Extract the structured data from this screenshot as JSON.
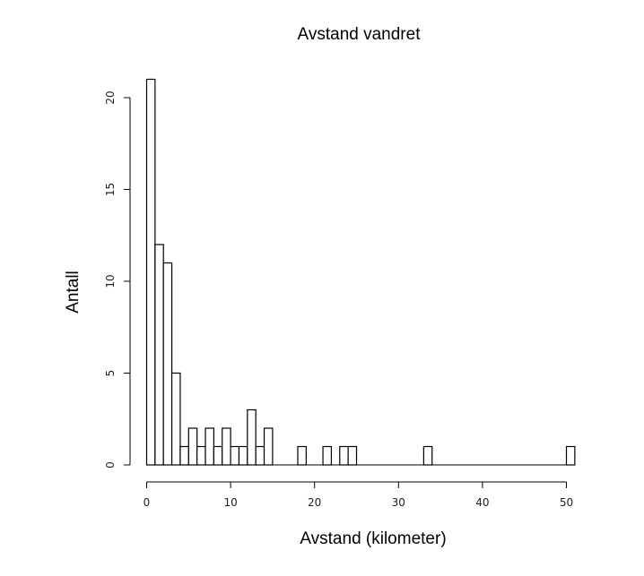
{
  "chart_data": {
    "type": "bar",
    "title": "Avstand vandret",
    "xlabel": "Avstand (kilometer)",
    "ylabel": "Antall",
    "bin_width": 1,
    "xlim": [
      0,
      51
    ],
    "ylim": [
      0,
      21
    ],
    "x_ticks": [
      0,
      10,
      20,
      30,
      40,
      50
    ],
    "y_ticks": [
      0,
      5,
      10,
      15,
      20
    ],
    "bins": [
      {
        "x0": 0,
        "x1": 1,
        "count": 21
      },
      {
        "x0": 1,
        "x1": 2,
        "count": 12
      },
      {
        "x0": 2,
        "x1": 3,
        "count": 11
      },
      {
        "x0": 3,
        "x1": 4,
        "count": 5
      },
      {
        "x0": 4,
        "x1": 5,
        "count": 1
      },
      {
        "x0": 5,
        "x1": 6,
        "count": 2
      },
      {
        "x0": 6,
        "x1": 7,
        "count": 1
      },
      {
        "x0": 7,
        "x1": 8,
        "count": 2
      },
      {
        "x0": 8,
        "x1": 9,
        "count": 1
      },
      {
        "x0": 9,
        "x1": 10,
        "count": 2
      },
      {
        "x0": 10,
        "x1": 11,
        "count": 1
      },
      {
        "x0": 11,
        "x1": 12,
        "count": 1
      },
      {
        "x0": 12,
        "x1": 13,
        "count": 3
      },
      {
        "x0": 13,
        "x1": 14,
        "count": 1
      },
      {
        "x0": 14,
        "x1": 15,
        "count": 2
      },
      {
        "x0": 18,
        "x1": 19,
        "count": 1
      },
      {
        "x0": 21,
        "x1": 22,
        "count": 1
      },
      {
        "x0": 23,
        "x1": 24,
        "count": 1
      },
      {
        "x0": 24,
        "x1": 25,
        "count": 1
      },
      {
        "x0": 33,
        "x1": 34,
        "count": 1
      },
      {
        "x0": 50,
        "x1": 51,
        "count": 1
      }
    ]
  }
}
